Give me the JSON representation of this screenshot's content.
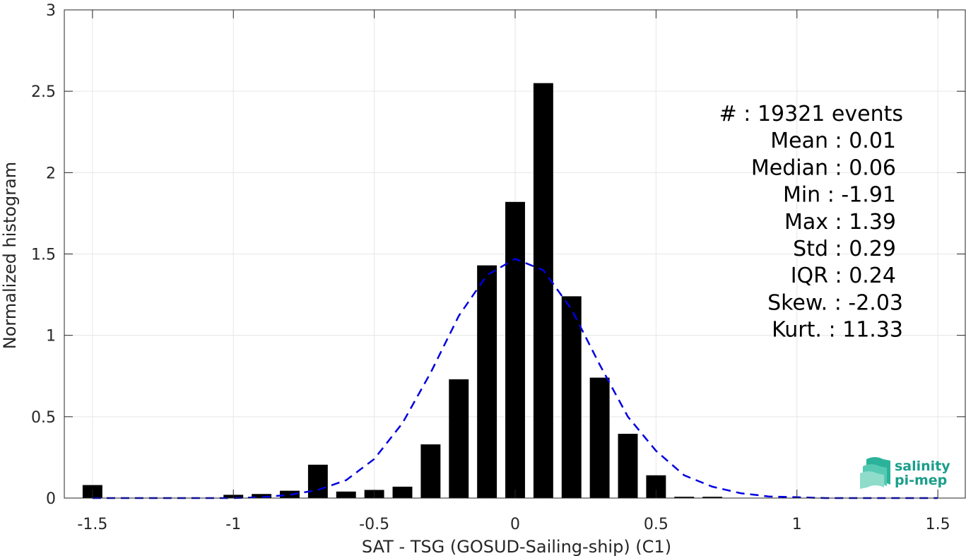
{
  "chart_data": {
    "type": "bar",
    "xlabel": "SAT - TSG (GOSUD-Sailing-ship) (C1)",
    "ylabel": "Normalized histogram",
    "xlim": [
      -1.6,
      1.6
    ],
    "ylim": [
      0,
      3
    ],
    "xticks": [
      -1.5,
      -1,
      -0.5,
      0,
      0.5,
      1,
      1.5
    ],
    "xtick_labels": [
      "-1.5",
      "-1",
      "-0.5",
      "0",
      "0.5",
      "1",
      "1.5"
    ],
    "yticks": [
      0,
      0.5,
      1,
      1.5,
      2,
      2.5,
      3
    ],
    "ytick_labels": [
      "0",
      "0.5",
      "1",
      "1.5",
      "2",
      "2.5",
      "3"
    ],
    "grid": true,
    "bar_width": 0.07,
    "bars": {
      "x": [
        -1.5,
        -1.4,
        -1.3,
        -1.2,
        -1.1,
        -1.0,
        -0.9,
        -0.8,
        -0.7,
        -0.6,
        -0.5,
        -0.4,
        -0.3,
        -0.2,
        -0.1,
        0.0,
        0.1,
        0.2,
        0.3,
        0.4,
        0.5,
        0.6,
        0.7,
        0.8,
        0.9,
        1.0
      ],
      "values": [
        0.08,
        0.0,
        0.0,
        0.0,
        0.0,
        0.02,
        0.025,
        0.045,
        0.205,
        0.04,
        0.05,
        0.07,
        0.33,
        0.73,
        1.43,
        1.82,
        2.55,
        1.24,
        0.74,
        0.395,
        0.14,
        0.008,
        0.008,
        0.002,
        0.001,
        0.001
      ]
    },
    "fit_curve": {
      "style": "dashed",
      "color": "#0000e0",
      "x": [
        -1.5,
        -1.4,
        -1.3,
        -1.2,
        -1.1,
        -1.0,
        -0.9,
        -0.8,
        -0.7,
        -0.6,
        -0.5,
        -0.4,
        -0.3,
        -0.2,
        -0.1,
        0.0,
        0.1,
        0.2,
        0.3,
        0.4,
        0.5,
        0.6,
        0.7,
        0.8,
        0.9,
        1.0,
        1.1,
        1.2,
        1.3,
        1.4,
        1.5
      ],
      "y": [
        0.0,
        0.0,
        0.0,
        0.0,
        0.0,
        0.0,
        0.005,
        0.02,
        0.05,
        0.11,
        0.24,
        0.46,
        0.77,
        1.12,
        1.37,
        1.47,
        1.4,
        1.16,
        0.82,
        0.5,
        0.29,
        0.14,
        0.07,
        0.03,
        0.01,
        0.005,
        0.0,
        0.0,
        0.0,
        0.0,
        0.0
      ]
    },
    "annotations": [
      "#  : 19321 events",
      "Mean : 0.01",
      "Median : 0.06",
      "Min : -1.91",
      "Max : 1.39",
      "Std : 0.29",
      "IQR : 0.24",
      "Skew. : -2.03",
      "Kurt. : 11.33"
    ],
    "colors": {
      "bars": "#000000",
      "grid": "#e6e6e6",
      "axis": "#262626",
      "logo": "#1a9e8a"
    }
  },
  "logo": {
    "line1": "salinity",
    "line2": "pi-mep"
  }
}
